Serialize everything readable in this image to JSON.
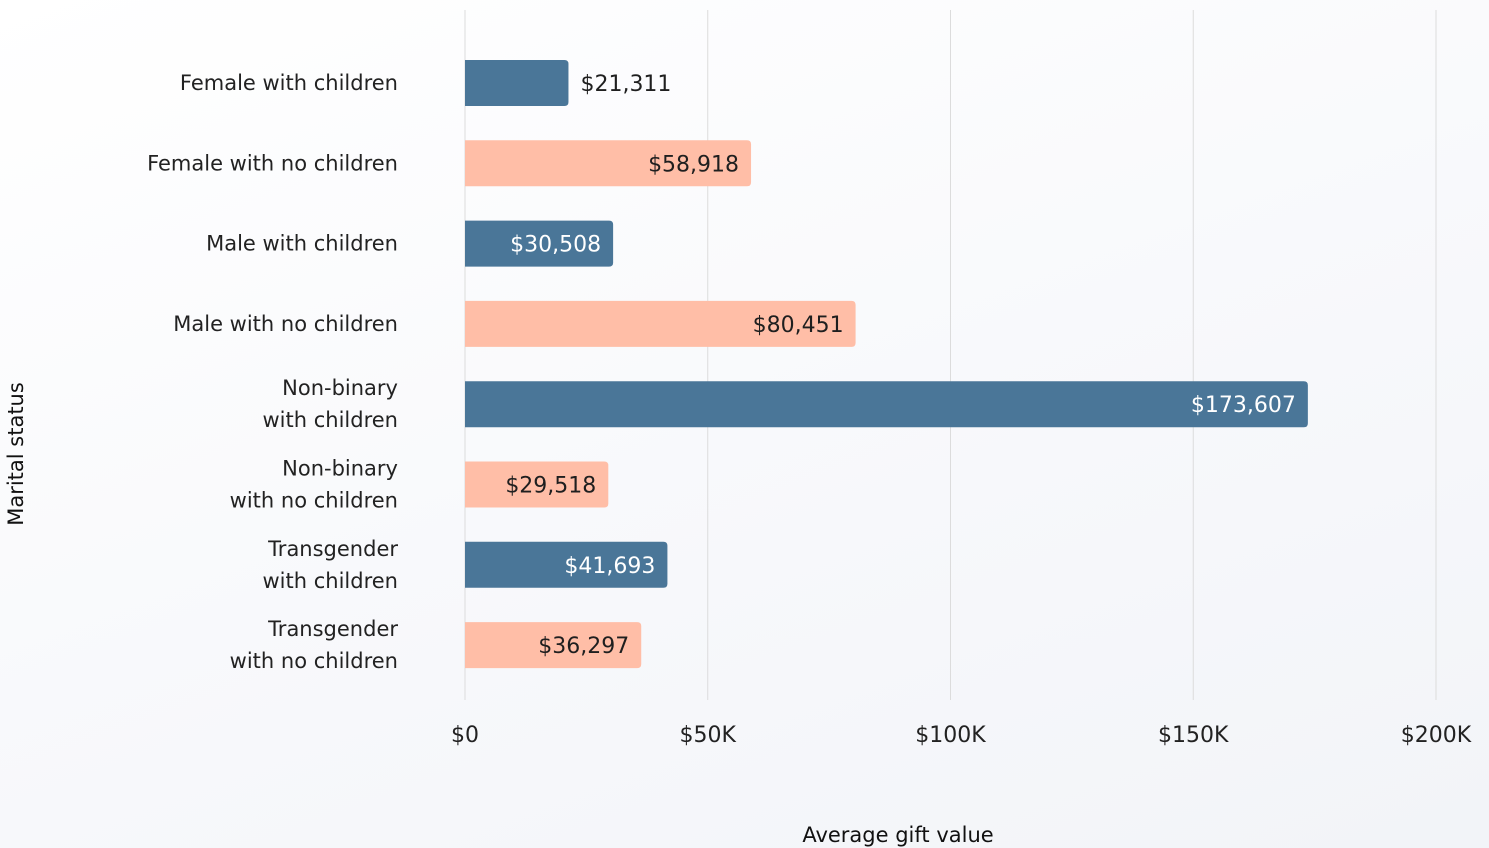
{
  "chart_data": {
    "type": "bar",
    "orientation": "horizontal",
    "xlabel": "Average gift value",
    "ylabel": "Marital status",
    "xlim": [
      0,
      200000
    ],
    "ticks": [
      {
        "value": 0,
        "label": "$0"
      },
      {
        "value": 50000,
        "label": "$50K"
      },
      {
        "value": 100000,
        "label": "$100K"
      },
      {
        "value": 150000,
        "label": "$150K"
      },
      {
        "value": 200000,
        "label": "$200K"
      }
    ],
    "grid": true,
    "colors": {
      "with_children": "#4a7698",
      "no_children": "#ffbea7"
    },
    "categories": [
      {
        "lines": [
          "Female with children"
        ],
        "value": 21311,
        "label": "$21,311",
        "group": "with_children"
      },
      {
        "lines": [
          "Female with no children"
        ],
        "value": 58918,
        "label": "$58,918",
        "group": "no_children"
      },
      {
        "lines": [
          "Male with children"
        ],
        "value": 30508,
        "label": "$30,508",
        "group": "with_children"
      },
      {
        "lines": [
          "Male with no children"
        ],
        "value": 80451,
        "label": "$80,451",
        "group": "no_children"
      },
      {
        "lines": [
          "Non-binary",
          "with children"
        ],
        "value": 173607,
        "label": "$173,607",
        "group": "with_children"
      },
      {
        "lines": [
          "Non-binary",
          "with no children"
        ],
        "value": 29518,
        "label": "$29,518",
        "group": "no_children"
      },
      {
        "lines": [
          "Transgender",
          "with children"
        ],
        "value": 41693,
        "label": "$41,693",
        "group": "with_children"
      },
      {
        "lines": [
          "Transgender",
          "with no children"
        ],
        "value": 36297,
        "label": "$36,297",
        "group": "no_children"
      }
    ]
  }
}
